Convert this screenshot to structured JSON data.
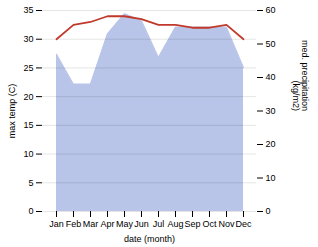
{
  "chart_data": {
    "type": "line",
    "categories": [
      "Jan",
      "Feb",
      "Mar",
      "Apr",
      "May",
      "Jun",
      "Jul",
      "Aug",
      "Sep",
      "Oct",
      "Nov",
      "Dec"
    ],
    "xlabel": "date (month)",
    "ylabel": "max temp (C)",
    "y2label": "med. precipitation\n(kg/m2)",
    "ylim": [
      0,
      35
    ],
    "yticks": [
      0,
      5,
      10,
      15,
      20,
      25,
      30,
      35
    ],
    "y2lim": [
      0,
      60
    ],
    "y2ticks": [
      0,
      10,
      20,
      30,
      40,
      50,
      60
    ],
    "grid": true,
    "series": [
      {
        "name": "max temp (C)",
        "type": "line",
        "color": "#c0392b",
        "values": [
          30,
          32.5,
          33,
          34,
          34,
          33.5,
          32.5,
          32.5,
          32,
          32,
          32.5,
          30
        ]
      },
      {
        "name": "med. precipitation\n(kg/m2)",
        "type": "area",
        "axis": "y2",
        "color": "#b8c4e8",
        "values": [
          47,
          38,
          38,
          53,
          59,
          57,
          46,
          55,
          55,
          55,
          55,
          43
        ]
      }
    ]
  }
}
